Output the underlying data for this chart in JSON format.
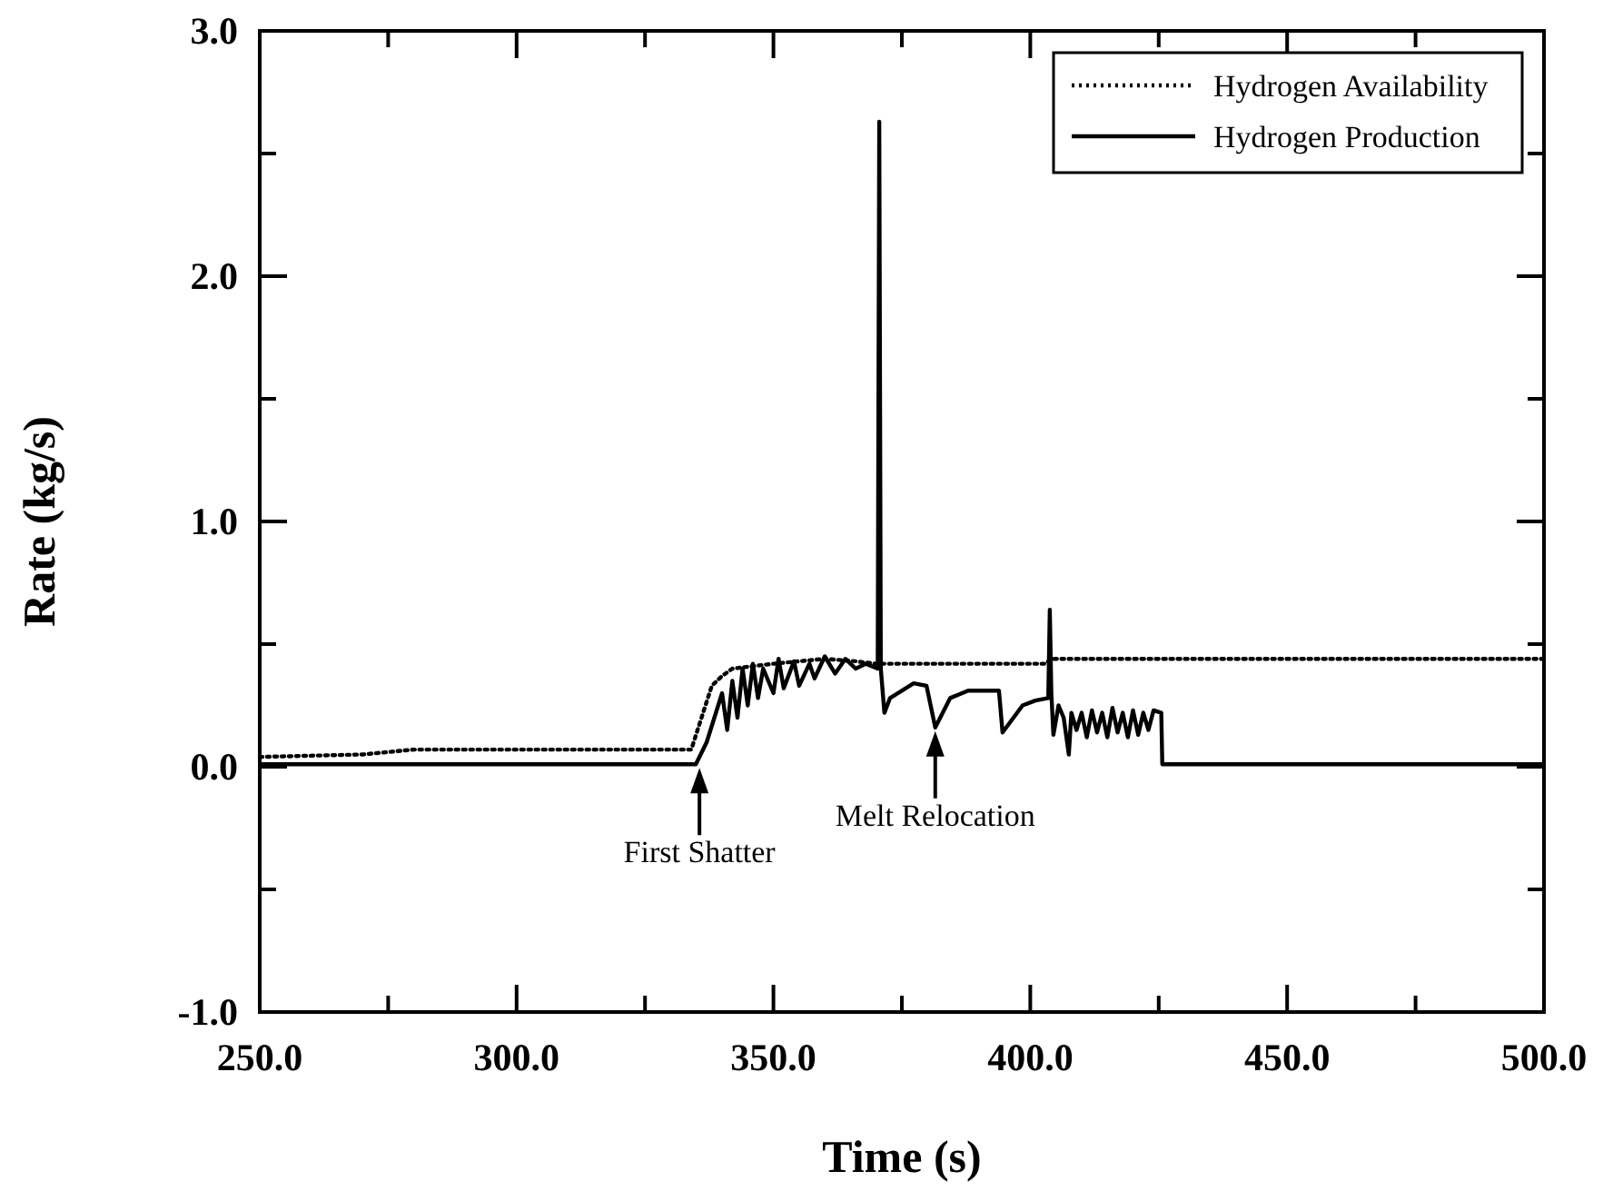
{
  "chart_data": {
    "type": "line",
    "xlabel": "Time (s)",
    "ylabel": "Rate (kg/s)",
    "xlim": [
      250,
      500
    ],
    "ylim": [
      -1,
      3
    ],
    "xticks": [
      {
        "value": 250,
        "label": "250.0"
      },
      {
        "value": 275,
        "label": null
      },
      {
        "value": 300,
        "label": "300.0"
      },
      {
        "value": 325,
        "label": null
      },
      {
        "value": 350,
        "label": "350.0"
      },
      {
        "value": 375,
        "label": null
      },
      {
        "value": 400,
        "label": "400.0"
      },
      {
        "value": 425,
        "label": null
      },
      {
        "value": 450,
        "label": "450.0"
      },
      {
        "value": 475,
        "label": null
      },
      {
        "value": 500,
        "label": "500.0"
      }
    ],
    "yticks": [
      {
        "value": -1,
        "label": "-1.0"
      },
      {
        "value": -0.5,
        "label": null
      },
      {
        "value": 0,
        "label": "0.0"
      },
      {
        "value": 0.5,
        "label": null
      },
      {
        "value": 1,
        "label": "1.0"
      },
      {
        "value": 1.5,
        "label": null
      },
      {
        "value": 2,
        "label": "2.0"
      },
      {
        "value": 2.5,
        "label": null
      },
      {
        "value": 3,
        "label": "3.0"
      }
    ],
    "grid": false,
    "legend": "top right",
    "marker": "none",
    "series": [
      {
        "name": "Hydrogen Availability",
        "color": "#000000",
        "line_style": "dotted",
        "x": [
          250,
          270,
          280,
          334,
          336,
          338,
          340,
          342,
          350,
          360,
          366,
          370,
          403,
          404,
          500
        ],
        "values": [
          0.04,
          0.05,
          0.07,
          0.07,
          0.2,
          0.33,
          0.37,
          0.4,
          0.42,
          0.44,
          0.43,
          0.42,
          0.42,
          0.44,
          0.44
        ]
      },
      {
        "name": "Hydrogen Production",
        "color": "#000000",
        "line_style": "solid",
        "x": [
          250,
          300,
          334.9,
          337,
          338.5,
          340,
          341,
          342,
          343,
          344,
          345,
          346,
          347,
          348,
          350,
          351,
          352,
          354,
          355,
          357,
          358,
          360,
          362,
          364,
          366,
          368,
          370.3,
          370.6,
          370.9,
          371.6,
          372.7,
          377.3,
          379.8,
          381.5,
          384.4,
          387.9,
          393.9,
          394.6,
          398.5,
          401,
          403.5,
          403.8,
          404.1,
          404.5,
          405.5,
          406.5,
          407.5,
          408,
          409,
          410,
          411,
          412,
          413,
          414,
          415,
          416,
          417,
          418,
          419,
          420,
          421,
          422,
          423,
          424,
          425.5,
          425.7,
          500
        ],
        "values": [
          0.01,
          0.01,
          0.01,
          0.1,
          0.2,
          0.3,
          0.15,
          0.35,
          0.2,
          0.4,
          0.25,
          0.42,
          0.28,
          0.4,
          0.3,
          0.44,
          0.32,
          0.43,
          0.33,
          0.42,
          0.36,
          0.45,
          0.38,
          0.44,
          0.4,
          0.42,
          0.4,
          2.63,
          0.4,
          0.22,
          0.28,
          0.34,
          0.33,
          0.16,
          0.28,
          0.31,
          0.31,
          0.14,
          0.25,
          0.27,
          0.28,
          0.64,
          0.3,
          0.13,
          0.25,
          0.2,
          0.05,
          0.22,
          0.15,
          0.22,
          0.12,
          0.23,
          0.14,
          0.22,
          0.12,
          0.24,
          0.14,
          0.22,
          0.12,
          0.23,
          0.13,
          0.22,
          0.15,
          0.23,
          0.22,
          0.01,
          0.01
        ]
      }
    ],
    "annotations": [
      {
        "text": "First Shatter",
        "x": 335.6,
        "y": 0.01
      },
      {
        "text": "Melt Relocation",
        "x": 381.5,
        "y": 0.16
      }
    ]
  }
}
